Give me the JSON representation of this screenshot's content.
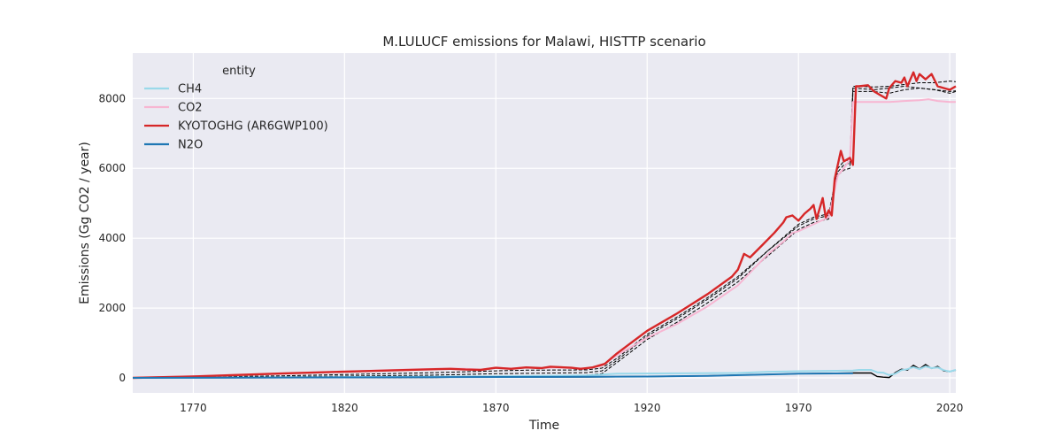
{
  "chart_data": {
    "type": "line",
    "title": "M.LULUCF emissions for Malawi, HISTTP scenario",
    "xlabel": "Time",
    "ylabel": "Emissions (Gg CO2 / year)",
    "xlim": [
      1750,
      2022
    ],
    "ylim": [
      -430,
      9300
    ],
    "x_ticks": [
      1770,
      1820,
      1870,
      1920,
      1970,
      2020
    ],
    "y_ticks": [
      0,
      2000,
      4000,
      6000,
      8000
    ],
    "grid": true,
    "legend": {
      "title": "entity",
      "placement": "top-left"
    },
    "series": [
      {
        "name": "CH4",
        "color": "#9ad9ea",
        "points": [
          [
            1750,
            0
          ],
          [
            1800,
            15
          ],
          [
            1850,
            35
          ],
          [
            1870,
            45
          ],
          [
            1900,
            70
          ],
          [
            1910,
            120
          ],
          [
            1930,
            130
          ],
          [
            1950,
            140
          ],
          [
            1960,
            175
          ],
          [
            1970,
            190
          ],
          [
            1980,
            200
          ],
          [
            1988,
            210
          ],
          [
            1990,
            230
          ],
          [
            1994,
            230
          ],
          [
            1996,
            160
          ],
          [
            1998,
            150
          ],
          [
            2000,
            80
          ],
          [
            2002,
            120
          ],
          [
            2004,
            220
          ],
          [
            2006,
            250
          ],
          [
            2008,
            310
          ],
          [
            2010,
            250
          ],
          [
            2012,
            330
          ],
          [
            2014,
            280
          ],
          [
            2016,
            300
          ],
          [
            2018,
            220
          ],
          [
            2020,
            180
          ],
          [
            2022,
            230
          ]
        ]
      },
      {
        "name": "CO2",
        "color": "#f7b6d2",
        "points": [
          [
            1750,
            0
          ],
          [
            1800,
            120
          ],
          [
            1840,
            240
          ],
          [
            1855,
            270
          ],
          [
            1860,
            260
          ],
          [
            1865,
            240
          ],
          [
            1870,
            290
          ],
          [
            1875,
            270
          ],
          [
            1880,
            300
          ],
          [
            1885,
            280
          ],
          [
            1890,
            300
          ],
          [
            1895,
            280
          ],
          [
            1900,
            270
          ],
          [
            1905,
            350
          ],
          [
            1910,
            650
          ],
          [
            1920,
            1150
          ],
          [
            1930,
            1550
          ],
          [
            1940,
            2050
          ],
          [
            1950,
            2650
          ],
          [
            1955,
            3100
          ],
          [
            1960,
            3550
          ],
          [
            1965,
            3900
          ],
          [
            1968,
            4150
          ],
          [
            1970,
            4200
          ],
          [
            1975,
            4400
          ],
          [
            1980,
            4600
          ],
          [
            1983,
            5800
          ],
          [
            1985,
            6000
          ],
          [
            1987,
            6250
          ],
          [
            1988,
            7900
          ],
          [
            1995,
            7900
          ],
          [
            2000,
            7900
          ],
          [
            2005,
            7930
          ],
          [
            2010,
            7950
          ],
          [
            2013,
            7980
          ],
          [
            2016,
            7930
          ],
          [
            2020,
            7900
          ],
          [
            2022,
            7900
          ]
        ]
      },
      {
        "name": "KYOTOGHG (AR6GWP100)",
        "color": "#d62728",
        "points": [
          [
            1750,
            0
          ],
          [
            1770,
            40
          ],
          [
            1800,
            130
          ],
          [
            1830,
            200
          ],
          [
            1850,
            250
          ],
          [
            1855,
            260
          ],
          [
            1860,
            240
          ],
          [
            1865,
            230
          ],
          [
            1870,
            290
          ],
          [
            1875,
            260
          ],
          [
            1880,
            300
          ],
          [
            1885,
            280
          ],
          [
            1888,
            320
          ],
          [
            1895,
            290
          ],
          [
            1898,
            260
          ],
          [
            1902,
            300
          ],
          [
            1906,
            400
          ],
          [
            1910,
            700
          ],
          [
            1920,
            1350
          ],
          [
            1930,
            1850
          ],
          [
            1940,
            2400
          ],
          [
            1948,
            2900
          ],
          [
            1950,
            3100
          ],
          [
            1952,
            3550
          ],
          [
            1954,
            3450
          ],
          [
            1958,
            3800
          ],
          [
            1962,
            4150
          ],
          [
            1965,
            4450
          ],
          [
            1966,
            4600
          ],
          [
            1968,
            4650
          ],
          [
            1970,
            4500
          ],
          [
            1972,
            4700
          ],
          [
            1974,
            4850
          ],
          [
            1975,
            4950
          ],
          [
            1976,
            4550
          ],
          [
            1978,
            5150
          ],
          [
            1979,
            4600
          ],
          [
            1980,
            4800
          ],
          [
            1981,
            4650
          ],
          [
            1982,
            5700
          ],
          [
            1984,
            6500
          ],
          [
            1985,
            6200
          ],
          [
            1987,
            6300
          ],
          [
            1988,
            6100
          ],
          [
            1989,
            8350
          ],
          [
            1990,
            8350
          ],
          [
            1993,
            8380
          ],
          [
            1995,
            8200
          ],
          [
            1997,
            8100
          ],
          [
            1999,
            8000
          ],
          [
            2000,
            8300
          ],
          [
            2002,
            8500
          ],
          [
            2004,
            8450
          ],
          [
            2005,
            8600
          ],
          [
            2006,
            8350
          ],
          [
            2008,
            8750
          ],
          [
            2009,
            8500
          ],
          [
            2010,
            8700
          ],
          [
            2012,
            8550
          ],
          [
            2014,
            8700
          ],
          [
            2016,
            8350
          ],
          [
            2018,
            8300
          ],
          [
            2020,
            8250
          ],
          [
            2022,
            8350
          ]
        ]
      },
      {
        "name": "N2O",
        "color": "#1f77b4",
        "points": [
          [
            1750,
            0
          ],
          [
            1800,
            10
          ],
          [
            1850,
            20
          ],
          [
            1900,
            30
          ],
          [
            1920,
            40
          ],
          [
            1940,
            60
          ],
          [
            1960,
            100
          ],
          [
            1970,
            120
          ],
          [
            1988,
            130
          ]
        ]
      }
    ],
    "reference_lines": [
      {
        "color": "#000000",
        "style": "dashed",
        "points": [
          [
            1750,
            0
          ],
          [
            1800,
            60
          ],
          [
            1850,
            150
          ],
          [
            1870,
            200
          ],
          [
            1880,
            220
          ],
          [
            1900,
            230
          ],
          [
            1905,
            280
          ],
          [
            1910,
            560
          ],
          [
            1920,
            1250
          ],
          [
            1930,
            1750
          ],
          [
            1940,
            2300
          ],
          [
            1950,
            2900
          ],
          [
            1960,
            3650
          ],
          [
            1970,
            4400
          ],
          [
            1975,
            4600
          ],
          [
            1980,
            4700
          ],
          [
            1983,
            6000
          ],
          [
            1985,
            6200
          ],
          [
            1987,
            6250
          ],
          [
            1988,
            8350
          ],
          [
            1995,
            8330
          ],
          [
            2000,
            8350
          ],
          [
            2005,
            8400
          ],
          [
            2010,
            8450
          ],
          [
            2015,
            8450
          ],
          [
            2020,
            8500
          ],
          [
            2022,
            8480
          ]
        ]
      },
      {
        "color": "#000000",
        "style": "dashed",
        "points": [
          [
            1750,
            0
          ],
          [
            1800,
            30
          ],
          [
            1850,
            80
          ],
          [
            1870,
            120
          ],
          [
            1900,
            150
          ],
          [
            1905,
            200
          ],
          [
            1910,
            500
          ],
          [
            1920,
            1200
          ],
          [
            1930,
            1700
          ],
          [
            1940,
            2250
          ],
          [
            1950,
            2850
          ],
          [
            1960,
            3650
          ],
          [
            1970,
            4350
          ],
          [
            1975,
            4550
          ],
          [
            1980,
            4650
          ],
          [
            1983,
            5900
          ],
          [
            1985,
            6100
          ],
          [
            1987,
            6150
          ],
          [
            1988,
            8300
          ],
          [
            1995,
            8250
          ],
          [
            2000,
            8300
          ],
          [
            2005,
            8350
          ],
          [
            2010,
            8300
          ],
          [
            2015,
            8250
          ],
          [
            2020,
            8200
          ],
          [
            2022,
            8220
          ]
        ]
      },
      {
        "color": "#000000",
        "style": "dashed",
        "points": [
          [
            1750,
            0
          ],
          [
            1800,
            0
          ],
          [
            1850,
            10
          ],
          [
            1870,
            40
          ],
          [
            1900,
            80
          ],
          [
            1905,
            120
          ],
          [
            1910,
            440
          ],
          [
            1920,
            1100
          ],
          [
            1930,
            1600
          ],
          [
            1940,
            2150
          ],
          [
            1950,
            2750
          ],
          [
            1960,
            3500
          ],
          [
            1970,
            4250
          ],
          [
            1975,
            4450
          ],
          [
            1980,
            4550
          ],
          [
            1983,
            5800
          ],
          [
            1985,
            5950
          ],
          [
            1987,
            6000
          ],
          [
            1988,
            8200
          ],
          [
            1995,
            8200
          ],
          [
            2000,
            8150
          ],
          [
            2005,
            8250
          ],
          [
            2010,
            8300
          ],
          [
            2015,
            8250
          ],
          [
            2020,
            8150
          ],
          [
            2022,
            8200
          ]
        ]
      },
      {
        "color": "#000000",
        "style": "solid",
        "points": [
          [
            1750,
            0
          ],
          [
            1800,
            5
          ],
          [
            1850,
            15
          ],
          [
            1900,
            25
          ],
          [
            1920,
            40
          ],
          [
            1940,
            60
          ],
          [
            1960,
            100
          ],
          [
            1970,
            120
          ],
          [
            1988,
            140
          ],
          [
            1994,
            140
          ],
          [
            1996,
            40
          ],
          [
            1998,
            20
          ],
          [
            2000,
            10
          ],
          [
            2002,
            150
          ],
          [
            2004,
            250
          ],
          [
            2006,
            220
          ],
          [
            2008,
            360
          ],
          [
            2010,
            260
          ],
          [
            2012,
            380
          ],
          [
            2014,
            270
          ],
          [
            2016,
            330
          ],
          [
            2018,
            200
          ],
          [
            2020,
            180
          ],
          [
            2022,
            220
          ]
        ]
      }
    ]
  }
}
